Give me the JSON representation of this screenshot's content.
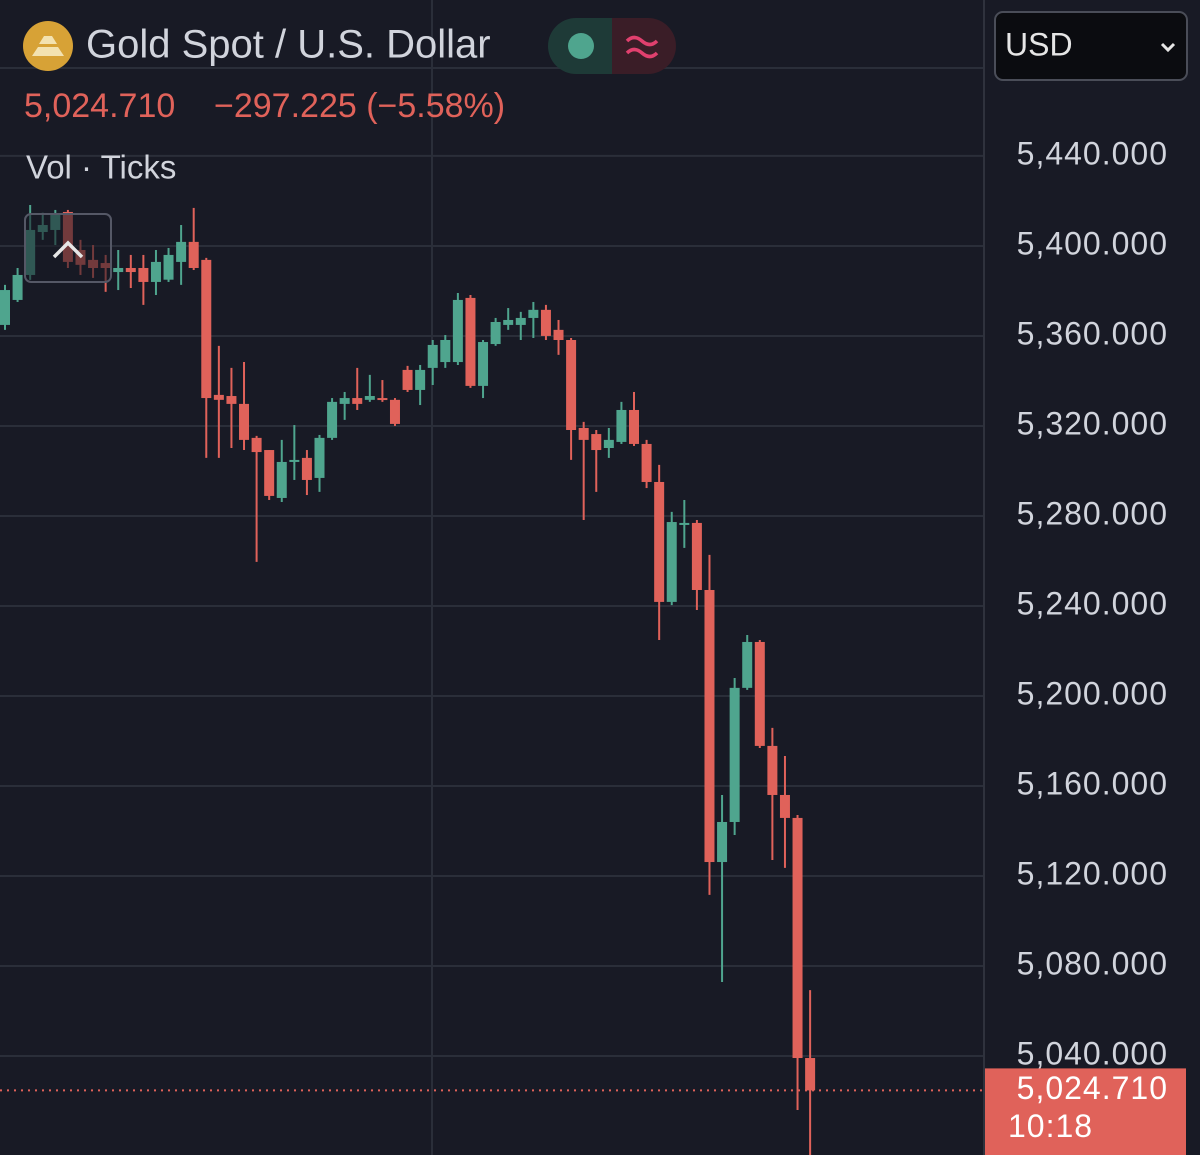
{
  "chart_data": {
    "type": "candlestick",
    "title": "Gold Spot / U.S. Dollar",
    "last_price": {
      "value": 5024.71,
      "label": "5,024.710"
    },
    "change": "−297.225 (−5.58%)",
    "indicators": "Vol · Ticks",
    "currency": "USD",
    "time_remaining": "10:18",
    "up_color": "#4fa58e",
    "down_color": "#e0625a",
    "categories": [
      null,
      null,
      null,
      null,
      null,
      null,
      null,
      null,
      null,
      null,
      null,
      null,
      null,
      null,
      null,
      null,
      null,
      null,
      null,
      null,
      null,
      null,
      null,
      null,
      null,
      null,
      null,
      null,
      null,
      null,
      null,
      null,
      null,
      null,
      null,
      null,
      null,
      null,
      null,
      null,
      null,
      null,
      null,
      null,
      null,
      null,
      null,
      null,
      null,
      null,
      null,
      null,
      null,
      null,
      null,
      null,
      null,
      null,
      null,
      null,
      null,
      null,
      null,
      null,
      null
    ],
    "open": [
      5364.9,
      5376,
      5387.1,
      5406.2,
      5407.1,
      5415.1,
      5398.2,
      5393.8,
      5392.4,
      5388.4,
      5390.2,
      5390.2,
      5384,
      5385,
      5392.9,
      5401.8,
      5393.8,
      5333.8,
      5333.3,
      5329.8,
      5314.7,
      5309.3,
      5288,
      5304,
      5305.8,
      5296.9,
      5314.7,
      5329.8,
      5332.4,
      5331.6,
      5332.4,
      5331.6,
      5344.9,
      5336,
      5345.8,
      5348.4,
      5348.4,
      5376.9,
      5337.8,
      5356.4,
      5364.9,
      5364.9,
      5368,
      5371.6,
      5362.7,
      5358.2,
      5319.1,
      5316.4,
      5310.2,
      5312.9,
      5327.1,
      5312,
      5295.1,
      5241.8,
      5276,
      5276.9,
      5247.1,
      5126.2,
      5144,
      5203.6,
      5224,
      5177.8,
      5156,
      5145.8,
      5039.1
    ],
    "high": [
      5382.7,
      5390.2,
      5418.2,
      5414.7,
      5416,
      5416,
      5402.7,
      5400.4,
      5396,
      5398.2,
      5396,
      5396,
      5398.2,
      5399.1,
      5409.3,
      5416.9,
      5394.7,
      5355.6,
      5345.8,
      5348.4,
      5315.6,
      5309.3,
      5313.8,
      5320.4,
      5309.3,
      5316,
      5332.4,
      5335.1,
      5345.8,
      5342.7,
      5340.4,
      5332.4,
      5346.7,
      5347.1,
      5358.2,
      5360.4,
      5379.1,
      5378.2,
      5358.2,
      5368,
      5372.4,
      5370.7,
      5375.1,
      5373.8,
      5367.1,
      5359.1,
      5321.8,
      5318.2,
      5319.1,
      5330.7,
      5335.1,
      5313.8,
      5302.7,
      5281.8,
      5287.1,
      5278.2,
      5262.7,
      5156,
      5208,
      5227.1,
      5224.9,
      5185.8,
      5173.3,
      5147.1,
      5069.3
    ],
    "low": [
      5362.7,
      5375.1,
      5384.9,
      5402.7,
      5400.4,
      5390.2,
      5387.1,
      5385.8,
      5379.6,
      5380.4,
      5381.3,
      5373.8,
      5378.2,
      5384,
      5382.7,
      5389.3,
      5305.8,
      5305.8,
      5310.2,
      5309.3,
      5259.6,
      5287.1,
      5286.2,
      5296,
      5289.3,
      5290.7,
      5313.8,
      5322.7,
      5327.1,
      5330.7,
      5330.7,
      5320,
      5335.1,
      5329.3,
      5338.2,
      5345.8,
      5347.1,
      5336.9,
      5332.4,
      5355.6,
      5362.7,
      5358.2,
      5359.1,
      5358.2,
      5351.6,
      5304.9,
      5278.2,
      5290.7,
      5305.8,
      5312,
      5311.1,
      5292.4,
      5224.9,
      5240.4,
      5265.8,
      5238.2,
      5111.6,
      5072.9,
      5138.2,
      5202.7,
      5176.9,
      5127.1,
      5123.6,
      5016,
      4996
    ],
    "close": [
      5380.4,
      5387.1,
      5407.1,
      5409.3,
      5413.8,
      5392.9,
      5391.6,
      5390.2,
      5390.2,
      5390.2,
      5388.4,
      5384,
      5392.9,
      5396,
      5401.8,
      5390.2,
      5332.4,
      5331.6,
      5329.8,
      5313.8,
      5308.4,
      5288.9,
      5304,
      5304.9,
      5296,
      5314.7,
      5330.7,
      5332.4,
      5329.8,
      5333.3,
      5331.6,
      5320.9,
      5336,
      5344.9,
      5356,
      5358.2,
      5376,
      5337.8,
      5357.3,
      5366.2,
      5367.1,
      5368,
      5371.6,
      5360,
      5358.2,
      5318.2,
      5313.8,
      5309.3,
      5313.8,
      5327.1,
      5312,
      5295.1,
      5241.8,
      5277.3,
      5276.9,
      5247.1,
      5126.2,
      5144,
      5203.6,
      5224,
      5177.8,
      5156,
      5145.8,
      5039.1,
      5024.71
    ],
    "ylim": [
      4996,
      5509.3
    ],
    "yticks": [
      {
        "value": 5040,
        "label": "5,040.000"
      },
      {
        "value": 5080,
        "label": "5,080.000"
      },
      {
        "value": 5120,
        "label": "5,120.000"
      },
      {
        "value": 5160,
        "label": "5,160.000"
      },
      {
        "value": 5200,
        "label": "5,200.000"
      },
      {
        "value": 5240,
        "label": "5,240.000"
      },
      {
        "value": 5280,
        "label": "5,280.000"
      },
      {
        "value": 5320,
        "label": "5,320.000"
      },
      {
        "value": 5360,
        "label": "5,360.000"
      },
      {
        "value": 5400,
        "label": "5,400.000"
      },
      {
        "value": 5440,
        "label": "5,440.000"
      }
    ],
    "grid": true
  }
}
